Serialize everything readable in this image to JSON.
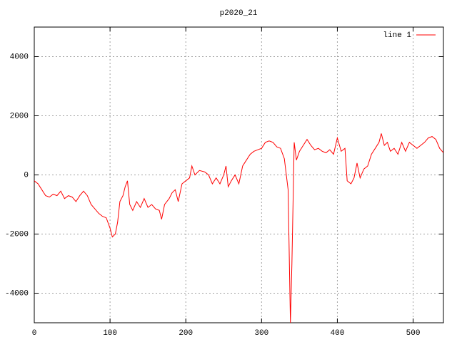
{
  "chart_data": {
    "type": "line",
    "title": "p2020_21",
    "x": [
      0,
      5,
      10,
      15,
      20,
      25,
      30,
      35,
      40,
      45,
      50,
      55,
      60,
      65,
      70,
      75,
      80,
      85,
      90,
      95,
      100,
      103,
      107,
      110,
      113,
      117,
      120,
      123,
      126,
      130,
      135,
      140,
      145,
      150,
      155,
      160,
      165,
      168,
      172,
      178,
      182,
      186,
      190,
      195,
      200,
      205,
      208,
      212,
      218,
      225,
      230,
      235,
      240,
      245,
      250,
      253,
      256,
      260,
      265,
      270,
      275,
      280,
      285,
      290,
      295,
      300,
      305,
      310,
      315,
      320,
      325,
      330,
      335,
      338,
      340,
      343,
      346,
      350,
      355,
      360,
      365,
      370,
      375,
      380,
      385,
      390,
      395,
      400,
      405,
      410,
      413,
      418,
      422,
      426,
      430,
      435,
      440,
      445,
      450,
      455,
      458,
      462,
      466,
      470,
      475,
      480,
      485,
      490,
      495,
      500,
      505,
      510,
      515,
      520,
      525,
      530,
      535,
      540
    ],
    "series": [
      {
        "name": "line 1",
        "color": "#ff0000",
        "values": [
          -200,
          -300,
          -500,
          -700,
          -750,
          -650,
          -700,
          -550,
          -800,
          -700,
          -750,
          -900,
          -700,
          -550,
          -700,
          -1000,
          -1150,
          -1300,
          -1400,
          -1450,
          -1800,
          -2100,
          -2000,
          -1600,
          -900,
          -700,
          -400,
          -200,
          -1000,
          -1200,
          -900,
          -1100,
          -800,
          -1100,
          -1000,
          -1150,
          -1200,
          -1500,
          -1000,
          -800,
          -600,
          -500,
          -900,
          -300,
          -200,
          -100,
          300,
          0,
          150,
          100,
          0,
          -300,
          -100,
          -300,
          0,
          300,
          -400,
          -200,
          0,
          -300,
          300,
          500,
          700,
          800,
          850,
          900,
          1100,
          1150,
          1100,
          950,
          900,
          550,
          -500,
          -5000,
          -3000,
          1100,
          500,
          800,
          1000,
          1200,
          1000,
          850,
          900,
          800,
          750,
          850,
          700,
          1250,
          800,
          900,
          -200,
          -300,
          -100,
          400,
          -100,
          200,
          300,
          700,
          900,
          1100,
          1400,
          1000,
          1100,
          800,
          900,
          700,
          1100,
          800,
          1100,
          1000,
          900,
          1000,
          1100,
          1250,
          1300,
          1200,
          900,
          750
        ]
      }
    ],
    "xlim": [
      0,
      540
    ],
    "xticks": [
      0,
      100,
      200,
      300,
      400,
      500
    ],
    "ylim": [
      -5000,
      5000
    ],
    "yticks": [
      -4000,
      -2000,
      0,
      2000,
      4000
    ],
    "grid": true,
    "legend": "top-right"
  }
}
